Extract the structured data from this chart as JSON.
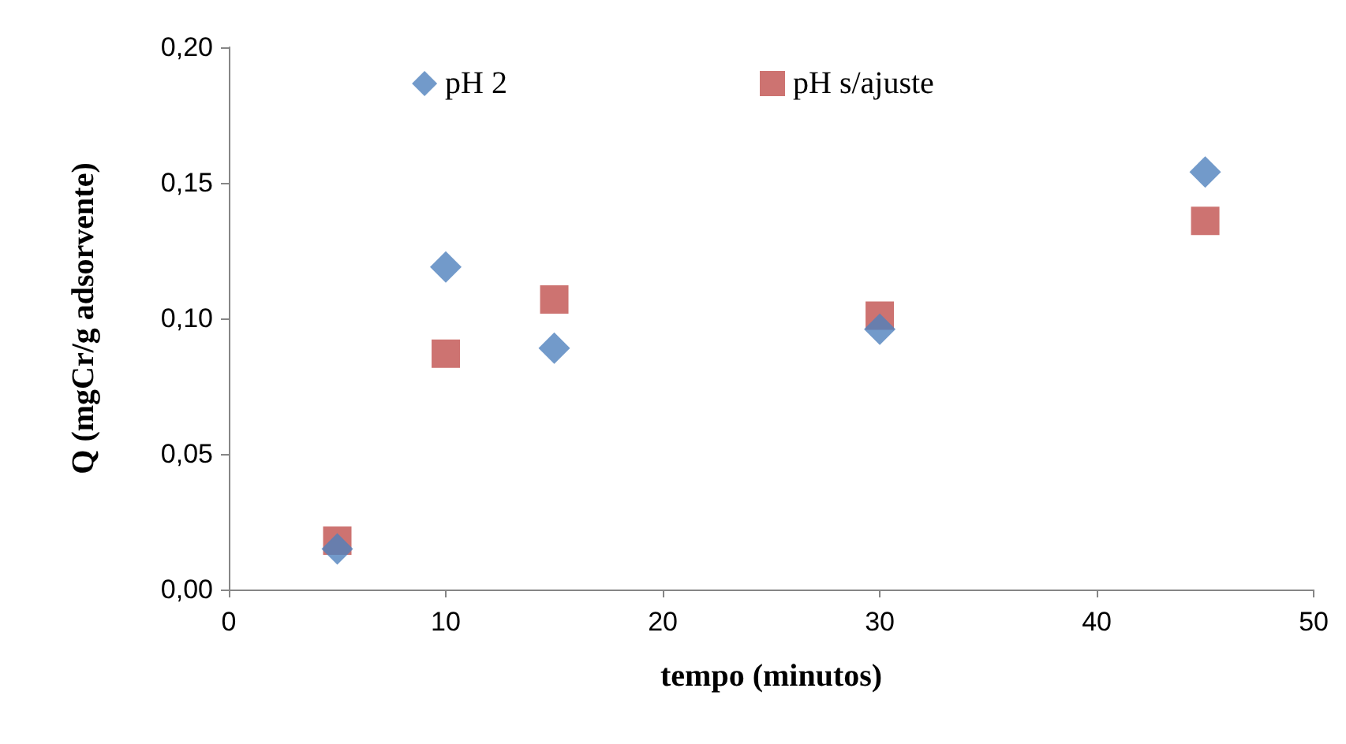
{
  "chart_data": {
    "type": "scatter",
    "xlabel": "tempo (minutos)",
    "ylabel": "Q (mgCr/g adsorvente)",
    "x": [
      5,
      10,
      15,
      30,
      45
    ],
    "series": [
      {
        "name": "pH 2",
        "color": "#4f81bd",
        "marker": "diamond",
        "values": [
          0.015,
          0.119,
          0.089,
          0.096,
          0.154
        ]
      },
      {
        "name": "pH s/ajuste",
        "color": "#c0504d",
        "marker": "square",
        "values": [
          0.018,
          0.087,
          0.107,
          0.101,
          0.136
        ]
      }
    ],
    "xlim": [
      0,
      50
    ],
    "xticks": [
      0,
      10,
      20,
      30,
      40,
      50
    ],
    "ylim": [
      0,
      0.2
    ],
    "yticks": [
      {
        "value": 0,
        "label": "0,00"
      },
      {
        "value": 0.05,
        "label": "0,05"
      },
      {
        "value": 0.1,
        "label": "0,10"
      },
      {
        "value": 0.15,
        "label": "0,15"
      },
      {
        "value": 0.2,
        "label": "0,20"
      }
    ],
    "grid": false,
    "legend": "top"
  }
}
